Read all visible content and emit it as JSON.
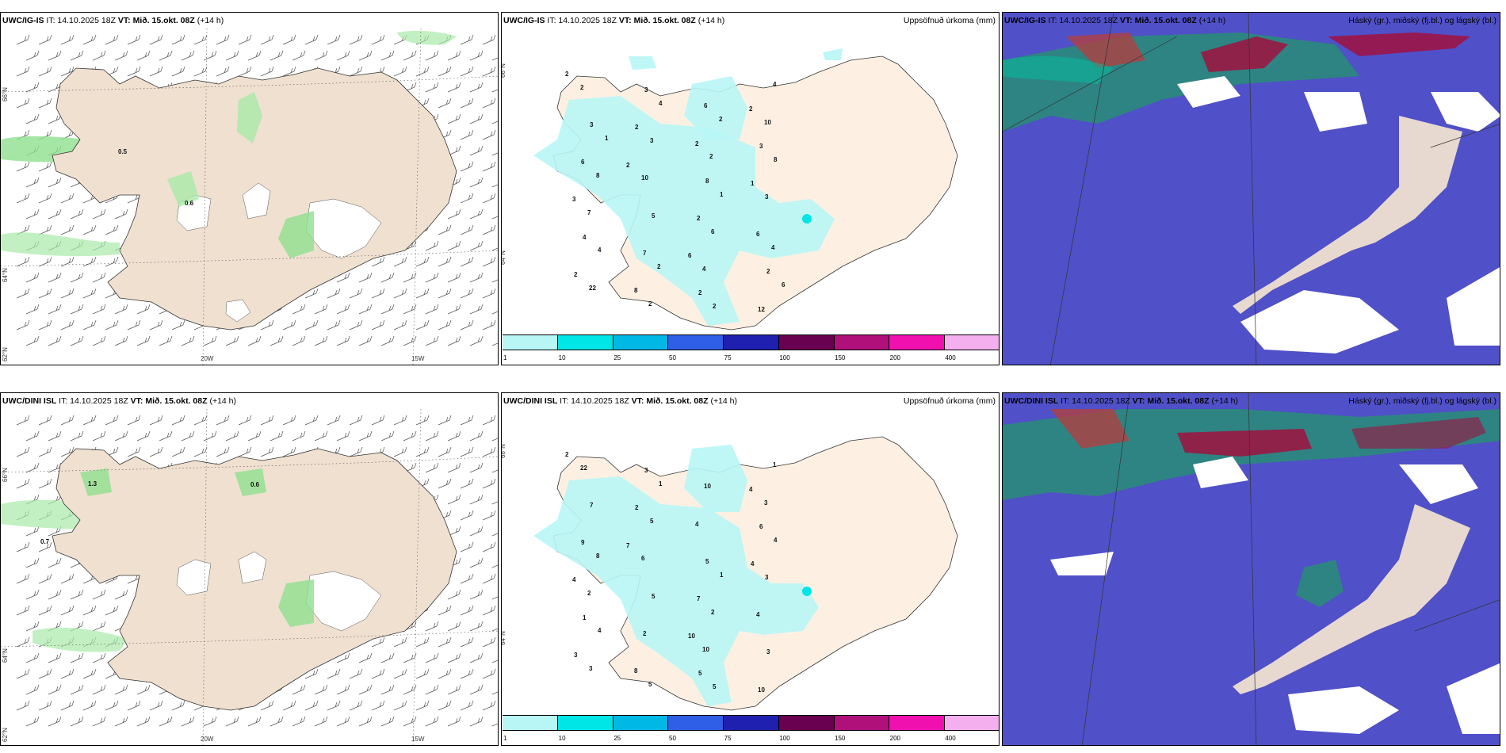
{
  "panels": {
    "wind_top": {
      "model": "UWC/IG-IS",
      "it": "IT: 14.10.2025 18Z",
      "vt_label": "VT:",
      "vt": "Mið. 15.okt. 08Z",
      "lead": "(+14 h)"
    },
    "precip_top": {
      "model": "UWC/IG-IS",
      "it": "IT: 14.10.2025 18Z",
      "vt_label": "VT:",
      "vt": "Mið. 15.okt. 08Z",
      "lead": "(+14 h)",
      "title": "Uppsöfnuð úrkoma (mm)"
    },
    "cloud_top": {
      "model": "UWC/IG-IS",
      "it": "IT: 14.10.2025 18Z",
      "vt_label": "VT:",
      "vt": "Mið. 15.okt. 08Z",
      "lead": "(+14 h)",
      "title": "Háský (gr.), miðský (fj.bl.) og lágský (bl.)"
    },
    "wind_bottom": {
      "model": "UWC/DINI ISL",
      "it": "IT: 14.10.2025 18Z",
      "vt_label": "VT:",
      "vt": "Mið. 15.okt. 08Z",
      "lead": "(+14 h)"
    },
    "precip_bottom": {
      "model": "UWC/DINI ISL",
      "it": "IT: 14.10.2025 18Z",
      "vt_label": "VT:",
      "vt": "Mið. 15.okt. 08Z",
      "lead": "(+14 h)",
      "title": "Uppsöfnuð úrkoma (mm)"
    },
    "cloud_bottom": {
      "model": "UWC/DINI ISL",
      "it": "IT: 14.10.2025 18Z",
      "vt_label": "VT:",
      "vt": "Mið. 15.okt. 08Z",
      "lead": "(+14 h)",
      "title": "Háský (gr.), miðský (fj.bl.) og lágský (bl.)"
    }
  },
  "grid_labels": {
    "lat_66": "66°N",
    "lat_64": "64°N",
    "lat_62": "62°N",
    "lon_20": "20W",
    "lon_15": "15W"
  },
  "colorbar": {
    "colors": [
      "#b8f6f6",
      "#00e6e6",
      "#00b8e6",
      "#2f5fe6",
      "#2020b0",
      "#6a0050",
      "#b0107a",
      "#f010b0",
      "#f4b0ee"
    ],
    "labels": [
      "1",
      "10",
      "25",
      "50",
      "75",
      "100",
      "150",
      "200",
      "400"
    ]
  },
  "wind_labels_top": [
    "0.5",
    "0.6"
  ],
  "wind_labels_bottom": [
    "1.3",
    "0.6",
    "0.7"
  ],
  "precip_values_top": [
    "2",
    "1",
    "2",
    "2",
    "2",
    "3",
    "6",
    "2",
    "4",
    "2",
    "2",
    "3",
    "3",
    "12",
    "8",
    "8",
    "6",
    "2",
    "2",
    "7",
    "3",
    "6",
    "6",
    "5",
    "2",
    "3",
    "2",
    "10",
    "22",
    "8",
    "4",
    "3",
    "4",
    "10",
    "6",
    "4",
    "7",
    "4",
    "1",
    "2",
    "8",
    "6",
    "2",
    "2",
    "1",
    "4",
    "2"
  ],
  "precip_values_bottom": [
    "2",
    "4",
    "5",
    "7",
    "3",
    "6",
    "10",
    "2",
    "1",
    "4",
    "7",
    "3",
    "4",
    "10",
    "5",
    "8",
    "9",
    "3",
    "4",
    "2",
    "7",
    "4",
    "10",
    "5",
    "22",
    "3",
    "5",
    "6",
    "3",
    "4",
    "10",
    "5",
    "4",
    "3",
    "2",
    "1",
    "2",
    "1",
    "1",
    "5",
    "8"
  ],
  "land_color": "#f0e2d2",
  "precip_land_color": "#fdf0e2",
  "cloud_blue": "#5050c8",
  "cloud_light": "#9ab0f0"
}
